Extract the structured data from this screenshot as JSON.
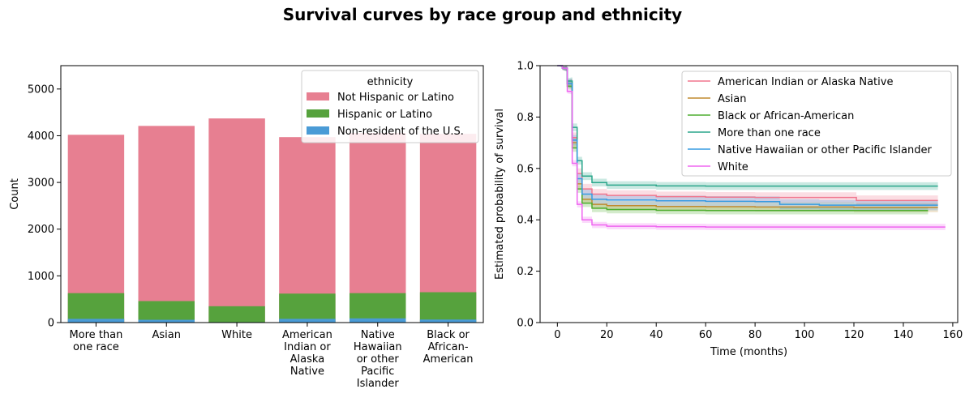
{
  "figure": {
    "title": "Survival curves by race group and ethnicity"
  },
  "chart_data": [
    {
      "type": "bar",
      "stacked": true,
      "title": "",
      "xlabel": "",
      "ylabel": "Count",
      "ylim": [
        0,
        5500
      ],
      "yticks": [
        0,
        1000,
        2000,
        3000,
        4000,
        5000
      ],
      "categories": [
        [
          "More than",
          "one race"
        ],
        [
          "Asian"
        ],
        [
          "White"
        ],
        [
          "American",
          "Indian or",
          "Alaska",
          "Native"
        ],
        [
          "Native",
          "Hawaiian",
          "or other",
          "Pacific",
          "Islander"
        ],
        [
          "Black or",
          "African-",
          "American"
        ]
      ],
      "legend": {
        "title": "ethnicity",
        "placement": "upper right"
      },
      "series": [
        {
          "name": "Not Hispanic or Latino",
          "color": "#e77f91",
          "totals": [
            4020,
            4210,
            4370,
            3970,
            4060,
            4040
          ]
        },
        {
          "name": "Hispanic or Latino",
          "color": "#56a23d",
          "totals": [
            630,
            460,
            350,
            620,
            630,
            650
          ]
        },
        {
          "name": "Non-resident of the U.S.",
          "color": "#4a9bd6",
          "totals": [
            80,
            60,
            10,
            80,
            90,
            65
          ]
        }
      ],
      "grid": false
    },
    {
      "type": "line",
      "title": "",
      "xlabel": "Time (months)",
      "ylabel": "Estimated probability of survival",
      "xlim": [
        -7,
        162
      ],
      "ylim": [
        0,
        1
      ],
      "xticks": [
        0,
        20,
        40,
        60,
        80,
        100,
        120,
        140,
        160
      ],
      "yticks": [
        0.0,
        0.2,
        0.4,
        0.6,
        0.8,
        1.0
      ],
      "ytick_labels": [
        "0.0",
        "0.2",
        "0.4",
        "0.6",
        "0.8",
        "1.0"
      ],
      "legend": {
        "placement": "upper right"
      },
      "series": [
        {
          "name": "American Indian or Alaska Native",
          "color": "#f0778e",
          "ci": 0.02,
          "points": [
            [
              0,
              1.0
            ],
            [
              2,
              0.99
            ],
            [
              4,
              0.93
            ],
            [
              6,
              0.72
            ],
            [
              8,
              0.58
            ],
            [
              10,
              0.52
            ],
            [
              14,
              0.5
            ],
            [
              20,
              0.495
            ],
            [
              40,
              0.49
            ],
            [
              60,
              0.488
            ],
            [
              80,
              0.487
            ],
            [
              100,
              0.487
            ],
            [
              120,
              0.487
            ],
            [
              121,
              0.475
            ],
            [
              154,
              0.475
            ]
          ]
        },
        {
          "name": "Asian",
          "color": "#c08a2f",
          "ci": 0.018,
          "points": [
            [
              0,
              1.0
            ],
            [
              2,
              0.99
            ],
            [
              4,
              0.93
            ],
            [
              6,
              0.7
            ],
            [
              8,
              0.54
            ],
            [
              10,
              0.48
            ],
            [
              14,
              0.46
            ],
            [
              20,
              0.455
            ],
            [
              40,
              0.452
            ],
            [
              60,
              0.451
            ],
            [
              80,
              0.45
            ],
            [
              100,
              0.45
            ],
            [
              120,
              0.448
            ],
            [
              154,
              0.448
            ]
          ]
        },
        {
          "name": "Black or African-American",
          "color": "#4eae30",
          "ci": 0.015,
          "points": [
            [
              0,
              1.0
            ],
            [
              2,
              0.99
            ],
            [
              4,
              0.92
            ],
            [
              6,
              0.68
            ],
            [
              8,
              0.52
            ],
            [
              10,
              0.465
            ],
            [
              14,
              0.445
            ],
            [
              20,
              0.44
            ],
            [
              40,
              0.437
            ],
            [
              60,
              0.436
            ],
            [
              80,
              0.436
            ],
            [
              100,
              0.436
            ],
            [
              120,
              0.436
            ],
            [
              150,
              0.436
            ]
          ]
        },
        {
          "name": "More than one race",
          "color": "#2aa68b",
          "ci": 0.015,
          "points": [
            [
              0,
              1.0
            ],
            [
              2,
              0.99
            ],
            [
              4,
              0.94
            ],
            [
              6,
              0.76
            ],
            [
              8,
              0.63
            ],
            [
              10,
              0.57
            ],
            [
              14,
              0.545
            ],
            [
              20,
              0.535
            ],
            [
              40,
              0.532
            ],
            [
              60,
              0.531
            ],
            [
              80,
              0.531
            ],
            [
              100,
              0.531
            ],
            [
              120,
              0.531
            ],
            [
              154,
              0.531
            ]
          ]
        },
        {
          "name": "Native Hawaiian or other Pacific Islander",
          "color": "#369be2",
          "ci": 0.02,
          "points": [
            [
              0,
              1.0
            ],
            [
              2,
              0.99
            ],
            [
              4,
              0.93
            ],
            [
              6,
              0.71
            ],
            [
              8,
              0.56
            ],
            [
              10,
              0.5
            ],
            [
              14,
              0.48
            ],
            [
              20,
              0.477
            ],
            [
              40,
              0.474
            ],
            [
              60,
              0.472
            ],
            [
              80,
              0.471
            ],
            [
              90,
              0.46
            ],
            [
              105,
              0.46
            ],
            [
              106,
              0.457
            ],
            [
              154,
              0.457
            ]
          ]
        },
        {
          "name": "White",
          "color": "#ef66f0",
          "ci": 0.012,
          "points": [
            [
              0,
              1.0
            ],
            [
              2,
              0.99
            ],
            [
              4,
              0.9
            ],
            [
              6,
              0.62
            ],
            [
              8,
              0.46
            ],
            [
              10,
              0.4
            ],
            [
              14,
              0.38
            ],
            [
              20,
              0.375
            ],
            [
              40,
              0.373
            ],
            [
              60,
              0.372
            ],
            [
              80,
              0.372
            ],
            [
              100,
              0.372
            ],
            [
              120,
              0.372
            ],
            [
              157,
              0.372
            ]
          ]
        }
      ],
      "grid": false
    }
  ]
}
